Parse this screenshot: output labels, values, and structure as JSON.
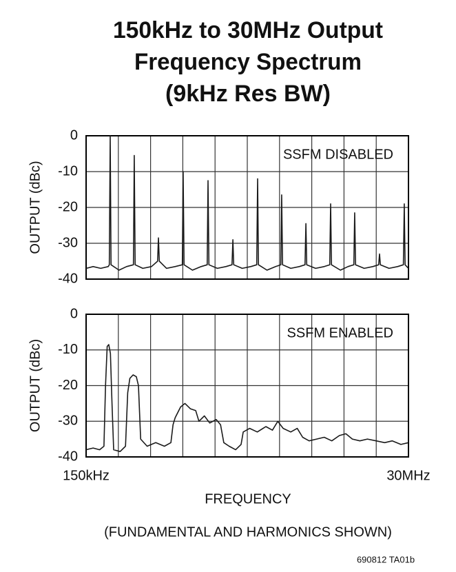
{
  "title": [
    "150kHz to 30MHz Output",
    "Frequency Spectrum",
    "(9kHz Res BW)"
  ],
  "xlabel": "FREQUENCY",
  "note": "(FUNDAMENTAL AND HARMONICS SHOWN)",
  "code": "690812 TA01b",
  "chart_data": [
    {
      "type": "line",
      "ylabel": "OUTPUT (dBc)",
      "annotation": "SSFM DISABLED",
      "color": "#1a1a1a",
      "grid": true,
      "xlim": [
        0.15,
        30
      ],
      "ylim": [
        -40,
        0
      ],
      "yticks": [
        0,
        -10,
        -20,
        -30,
        -40
      ],
      "xticks": [
        {
          "value": 0.15,
          "label": null
        },
        {
          "value": 3.135,
          "label": null
        },
        {
          "value": 6.12,
          "label": null
        },
        {
          "value": 9.105,
          "label": null
        },
        {
          "value": 12.09,
          "label": null
        },
        {
          "value": 15.075,
          "label": null
        },
        {
          "value": 18.06,
          "label": null
        },
        {
          "value": 21.045,
          "label": null
        },
        {
          "value": 24.03,
          "label": null
        },
        {
          "value": 27.015,
          "label": null
        },
        {
          "value": 30,
          "label": null
        }
      ],
      "x": [
        0.15,
        0.8,
        1.5,
        2.2,
        2.3,
        2.38,
        2.46,
        3.2,
        3.9,
        4.53,
        4.61,
        4.69,
        5.4,
        6.2,
        6.77,
        6.85,
        6.93,
        7.6,
        8.4,
        9.06,
        9.14,
        9.22,
        10.0,
        10.8,
        11.36,
        11.44,
        11.52,
        12.3,
        13.1,
        13.66,
        13.74,
        13.82,
        14.6,
        15.4,
        15.95,
        16.03,
        16.11,
        16.9,
        17.7,
        18.18,
        18.26,
        18.34,
        19.1,
        19.9,
        20.42,
        20.5,
        20.58,
        21.4,
        22.2,
        22.71,
        22.79,
        22.87,
        23.7,
        24.4,
        24.94,
        25.02,
        25.1,
        25.9,
        26.7,
        27.24,
        27.32,
        27.4,
        28.2,
        29.0,
        29.53,
        29.61,
        29.69,
        30
      ],
      "values": [
        -37,
        -36.5,
        -37,
        -36.5,
        -36,
        0,
        -36,
        -37.5,
        -36.5,
        -36,
        -5.5,
        -36,
        -37,
        -36.5,
        -35,
        -28.5,
        -35,
        -37,
        -36.5,
        -36,
        -10,
        -36,
        -37.5,
        -36.5,
        -36,
        -12.5,
        -36,
        -37,
        -36.5,
        -36,
        -29,
        -36,
        -37,
        -36.5,
        -36,
        -12,
        -36,
        -37.5,
        -36.5,
        -36,
        -16.5,
        -36,
        -37,
        -36.5,
        -36,
        -24.5,
        -36,
        -37,
        -36.5,
        -36,
        -19,
        -36,
        -37.5,
        -36.5,
        -36,
        -21.5,
        -36,
        -37,
        -36.5,
        -36,
        -33,
        -36,
        -37,
        -36.5,
        -36,
        -19,
        -36,
        -37
      ]
    },
    {
      "type": "line",
      "ylabel": "OUTPUT (dBc)",
      "annotation": "SSFM ENABLED",
      "color": "#1a1a1a",
      "grid": true,
      "xlim": [
        0.15,
        30
      ],
      "ylim": [
        -40,
        0
      ],
      "yticks": [
        0,
        -10,
        -20,
        -30,
        -40
      ],
      "xticks": [
        {
          "value": 0.15,
          "label": "150kHz"
        },
        {
          "value": 3.135,
          "label": null
        },
        {
          "value": 6.12,
          "label": null
        },
        {
          "value": 9.105,
          "label": null
        },
        {
          "value": 12.09,
          "label": null
        },
        {
          "value": 15.075,
          "label": null
        },
        {
          "value": 18.06,
          "label": null
        },
        {
          "value": 21.045,
          "label": null
        },
        {
          "value": 24.03,
          "label": null
        },
        {
          "value": 27.015,
          "label": null
        },
        {
          "value": 30,
          "label": "30MHz"
        }
      ],
      "x": [
        0.15,
        0.8,
        1.4,
        1.8,
        1.95,
        2.1,
        2.25,
        2.4,
        2.55,
        2.7,
        3.3,
        3.8,
        4.0,
        4.2,
        4.5,
        4.8,
        5.0,
        5.2,
        5.8,
        6.6,
        7.4,
        8.0,
        8.2,
        8.4,
        8.9,
        9.3,
        9.8,
        10.3,
        10.6,
        11.1,
        11.6,
        12.2,
        12.6,
        12.9,
        13.4,
        14.0,
        14.5,
        14.7,
        15.3,
        16.0,
        16.8,
        17.4,
        17.9,
        18.4,
        19.1,
        19.7,
        20.2,
        20.8,
        21.5,
        22.2,
        22.9,
        23.6,
        24.2,
        24.8,
        25.5,
        26.2,
        27.0,
        27.8,
        28.5,
        29.3,
        30
      ],
      "values": [
        -38,
        -37.5,
        -38,
        -37,
        -20,
        -9,
        -8.5,
        -11,
        -25,
        -38,
        -38.5,
        -37,
        -22,
        -18,
        -17,
        -17.5,
        -20,
        -35,
        -37,
        -36,
        -37,
        -36,
        -31,
        -29,
        -26,
        -25,
        -26.5,
        -27,
        -30,
        -28.5,
        -30.5,
        -29.5,
        -31,
        -36,
        -37,
        -38,
        -36.5,
        -33,
        -32,
        -33,
        -31.5,
        -32.5,
        -30,
        -32,
        -33,
        -32,
        -34.5,
        -35.5,
        -35,
        -34.5,
        -35.5,
        -34,
        -33.5,
        -35,
        -35.5,
        -35,
        -35.5,
        -36,
        -35.5,
        -36.5,
        -36
      ]
    }
  ]
}
